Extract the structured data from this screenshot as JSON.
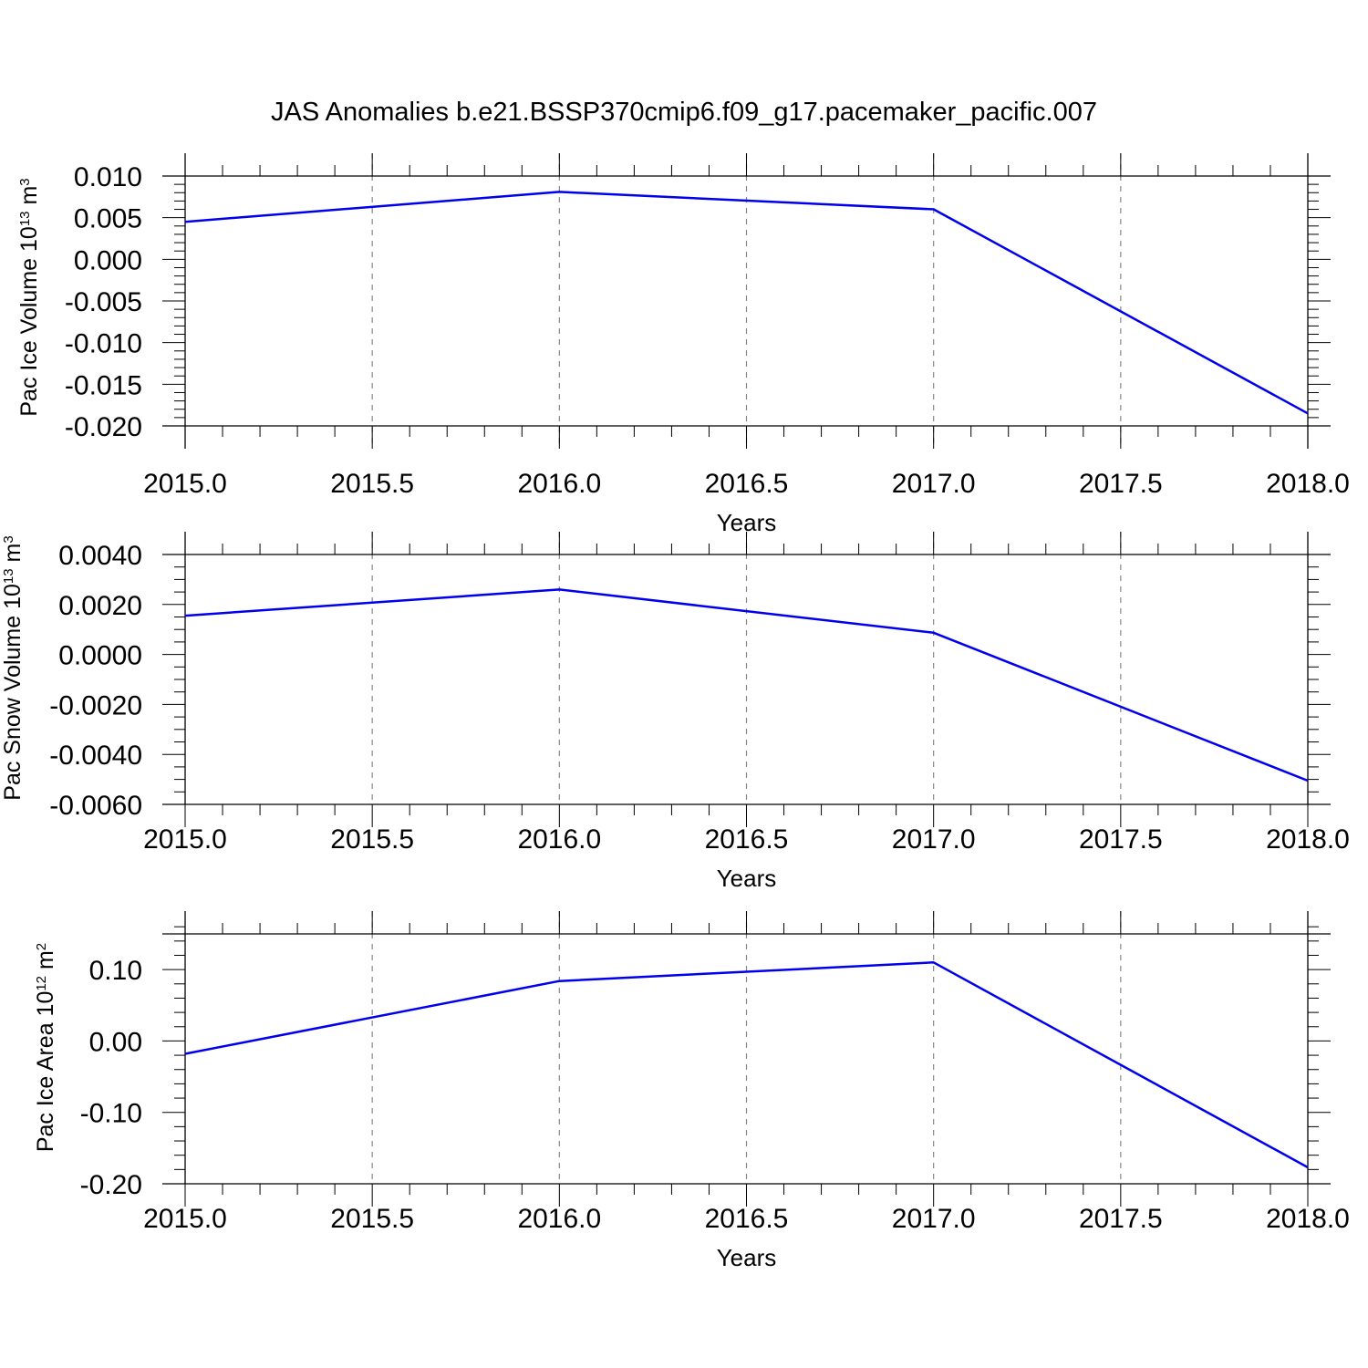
{
  "title": "JAS Anomalies b.e21.BSSP370cmip6.f09_g17.pacemaker_pacific.007",
  "chart_data": [
    {
      "type": "line",
      "title": "",
      "xlabel": "Years",
      "ylabel": {
        "prefix": "Pac Ice Volume 10",
        "exp": "13",
        "unit": " m",
        "unit_exp": "3"
      },
      "xlim": [
        2015.0,
        2018.0
      ],
      "ylim": [
        -0.02,
        0.01
      ],
      "x_ticks": [
        "2015.0",
        "2015.5",
        "2016.0",
        "2016.5",
        "2017.0",
        "2017.5",
        "2018.0"
      ],
      "y_ticks": [
        "0.010",
        "0.005",
        "0.000",
        "-0.005",
        "-0.010",
        "-0.015",
        "-0.020"
      ],
      "y_tick_values": [
        0.01,
        0.005,
        0.0,
        -0.005,
        -0.01,
        -0.015,
        -0.02
      ],
      "y_minor_step": 0.001,
      "grid": "vertical dashed at major x ticks",
      "series": [
        {
          "color": "#0000ee",
          "x": [
            2015,
            2016,
            2017,
            2018
          ],
          "y": [
            0.0045,
            0.0081,
            0.006,
            -0.0185
          ]
        }
      ]
    },
    {
      "type": "line",
      "title": "",
      "xlabel": "Years",
      "ylabel": {
        "prefix": "Pac Snow Volume 10",
        "exp": "13",
        "unit": " m",
        "unit_exp": "3"
      },
      "xlim": [
        2015.0,
        2018.0
      ],
      "ylim": [
        -0.006,
        0.004
      ],
      "x_ticks": [
        "2015.0",
        "2015.5",
        "2016.0",
        "2016.5",
        "2017.0",
        "2017.5",
        "2018.0"
      ],
      "y_ticks": [
        "0.0040",
        "0.0020",
        "0.0000",
        "-0.0020",
        "-0.0040",
        "-0.0060"
      ],
      "y_tick_values": [
        0.004,
        0.002,
        0.0,
        -0.002,
        -0.004,
        -0.006
      ],
      "y_minor_step": 0.0005,
      "grid": "vertical dashed at major x ticks",
      "series": [
        {
          "color": "#0000ee",
          "x": [
            2015,
            2016,
            2017,
            2018
          ],
          "y": [
            0.00155,
            0.0026,
            0.00087,
            -0.00505
          ]
        }
      ]
    },
    {
      "type": "line",
      "title": "",
      "xlabel": "Years",
      "ylabel": {
        "prefix": "Pac Ice Area 10",
        "exp": "12",
        "unit": " m",
        "unit_exp": "2"
      },
      "xlim": [
        2015.0,
        2018.0
      ],
      "ylim": [
        -0.2,
        0.15
      ],
      "x_ticks": [
        "2015.0",
        "2015.5",
        "2016.0",
        "2016.5",
        "2017.0",
        "2017.5",
        "2018.0"
      ],
      "y_ticks": [
        "0.10",
        "0.00",
        "-0.10",
        "-0.20"
      ],
      "y_tick_values": [
        0.1,
        0.0,
        -0.1,
        -0.2
      ],
      "y_minor_step": 0.02,
      "grid": "vertical dashed at major x ticks",
      "series": [
        {
          "color": "#0000ee",
          "x": [
            2015,
            2016,
            2017,
            2018
          ],
          "y": [
            -0.018,
            0.084,
            0.11,
            -0.177
          ]
        }
      ]
    }
  ]
}
